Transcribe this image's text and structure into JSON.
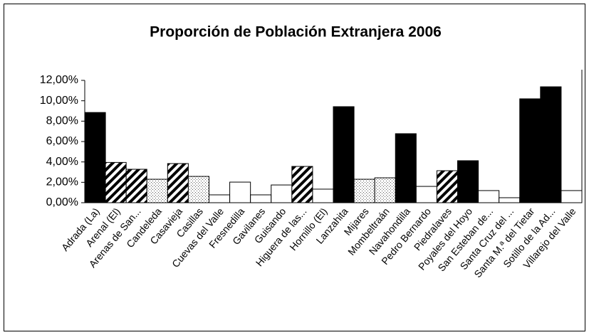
{
  "chart_data": {
    "type": "bar",
    "title": "Proporción de Población Extranjera 2006",
    "categories": [
      "Adrada (La)",
      "Arenal (El)",
      "Arenas de San...",
      "Candeleda",
      "Casavieja",
      "Casillas",
      "Cuevas del Valle",
      "Fresnedilla",
      "Gavilanes",
      "Guisando",
      "Higuera de las...",
      "Hornillo (El)",
      "Lanzahita",
      "Mijares",
      "Mombeltraán",
      "Navahondilla",
      "Pedro Bernardo",
      "Piedralaves",
      "Poyales del Hoyo",
      "San Esteban de...",
      "Santa Cruz del ...",
      "Santa M.ª del Tietar",
      "Sotillo de la Ad...",
      "Villarejo del Valle"
    ],
    "values": [
      8.85,
      3.95,
      3.28,
      2.3,
      3.84,
      2.58,
      0.77,
      2.02,
      0.77,
      1.74,
      3.56,
      1.33,
      9.42,
      2.3,
      2.44,
      6.77,
      1.6,
      3.14,
      4.12,
      1.19,
      0.49,
      10.19,
      11.37,
      1.19
    ],
    "fills": [
      "black",
      "hatch",
      "hatch",
      "dots",
      "hatch",
      "dots",
      "white",
      "white",
      "white",
      "white",
      "hatch",
      "white",
      "black",
      "dots",
      "dots",
      "black",
      "white",
      "hatch",
      "black",
      "white",
      "white",
      "black",
      "black",
      "white"
    ],
    "ylim": [
      0,
      12
    ],
    "yticks": [
      {
        "value": 0,
        "label": "0,00%"
      },
      {
        "value": 2,
        "label": "2,00%"
      },
      {
        "value": 4,
        "label": "4,00%"
      },
      {
        "value": 6,
        "label": "6,00%"
      },
      {
        "value": 8,
        "label": "8,00%"
      },
      {
        "value": 10,
        "label": "10,00%"
      },
      {
        "value": 12,
        "label": "12,00%"
      }
    ],
    "grid": false
  }
}
